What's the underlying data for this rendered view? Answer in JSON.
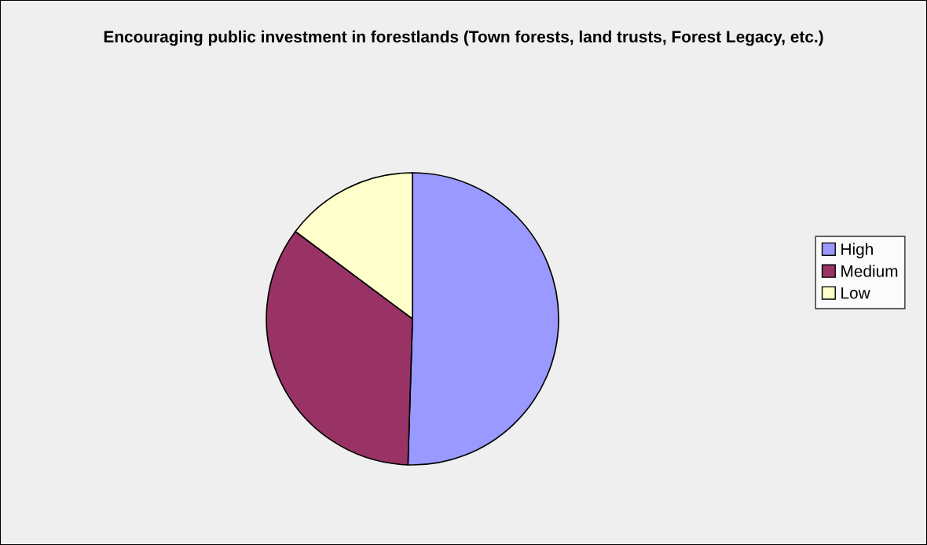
{
  "chart_data": {
    "type": "pie",
    "title": "Encouraging public investment in forestlands (Town forests, land trusts, Forest Legacy, etc.)",
    "categories": [
      "High",
      "Medium",
      "Low"
    ],
    "values": [
      50.5,
      34.7,
      14.8
    ],
    "colors": [
      "#9999ff",
      "#993366",
      "#ffffcc"
    ],
    "legend": "right"
  }
}
